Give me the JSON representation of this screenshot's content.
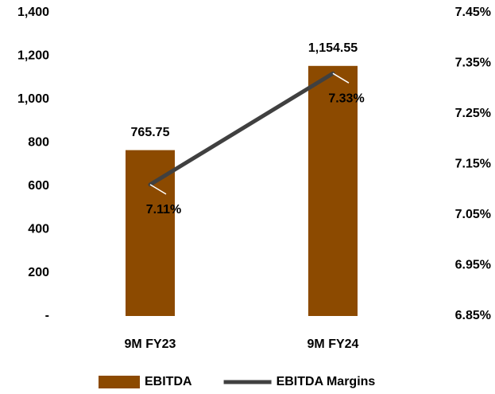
{
  "chart_data": {
    "type": "combo",
    "categories": [
      "9M FY23",
      "9M FY24"
    ],
    "series": [
      {
        "name": "EBITDA",
        "type": "bar",
        "color": "#8c4a00",
        "values": [
          765.75,
          1154.55
        ],
        "value_labels": [
          "765.75",
          "1,154.55"
        ]
      },
      {
        "name": "EBITDA Margins",
        "type": "line",
        "axis": "y2",
        "color": "#404040",
        "values": [
          7.11,
          7.33
        ],
        "value_labels": [
          "7.11%",
          "7.33%"
        ]
      }
    ],
    "ylim": [
      0,
      1400
    ],
    "yticks": [
      {
        "value": 0,
        "label": "-"
      },
      200,
      400,
      600,
      800,
      {
        "value": 1000,
        "label": "1,000"
      },
      {
        "value": 1200,
        "label": "1,200"
      },
      {
        "value": 1400,
        "label": "1,400"
      }
    ],
    "y2lim": [
      6.85,
      7.45
    ],
    "y2ticks": [
      {
        "value": 6.85,
        "label": "6.85%"
      },
      {
        "value": 6.95,
        "label": "6.95%"
      },
      {
        "value": 7.05,
        "label": "7.05%"
      },
      {
        "value": 7.15,
        "label": "7.15%"
      },
      {
        "value": 7.25,
        "label": "7.25%"
      },
      {
        "value": 7.35,
        "label": "7.35%"
      },
      {
        "value": 7.45,
        "label": "7.45%"
      }
    ],
    "grid": false,
    "legend": "bottom"
  }
}
